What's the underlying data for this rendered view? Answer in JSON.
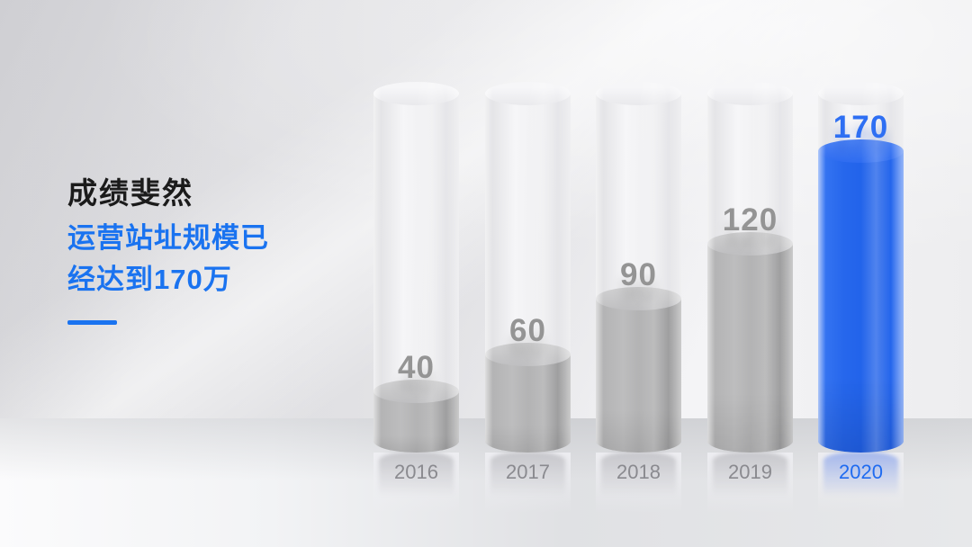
{
  "slide": {
    "title": "成绩斐然",
    "subtitle_lines": [
      "运营站址规模已",
      "经达到170万"
    ]
  },
  "colors": {
    "accent_blue": "#1a73f0",
    "bar_blue": "#2164ea",
    "bar_gray": "#aaaaaa",
    "value_label_gray": "#949494",
    "value_label_blue": "#2e6ff3",
    "year_label_gray": "#8a8a8f",
    "year_label_blue": "#1f6bf0",
    "title_dark": "#1b1b1b"
  },
  "chart_data": {
    "type": "bar",
    "variant": "3d-cylinder-fill",
    "title": "",
    "xlabel": "",
    "ylabel": "",
    "categories": [
      "2016",
      "2017",
      "2018",
      "2019",
      "2020"
    ],
    "values": [
      40,
      60,
      90,
      120,
      170
    ],
    "value_labels": [
      "40",
      "60",
      "90",
      "120",
      "170"
    ],
    "highlight_index": 4,
    "ylim": [
      0,
      200
    ],
    "grid": false,
    "legend": false
  }
}
